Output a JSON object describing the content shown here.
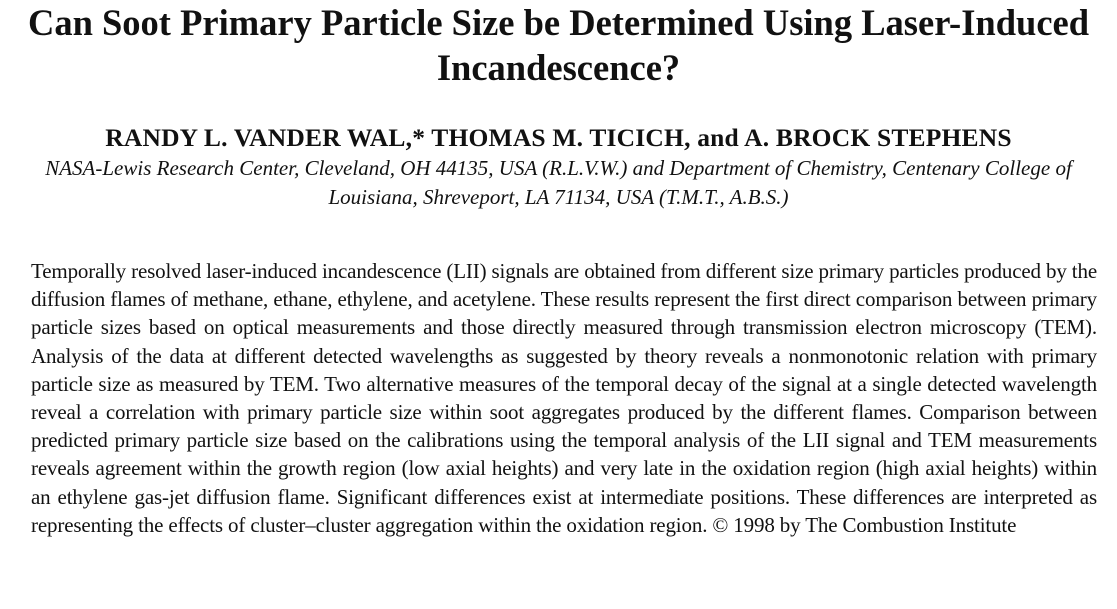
{
  "paper": {
    "title": "Can Soot Primary Particle Size be Determined Using Laser-Induced Incandescence?",
    "authors": "RANDY L. VANDER WAL,* THOMAS M. TICICH, and A. BROCK STEPHENS",
    "affiliation": "NASA-Lewis Research Center, Cleveland, OH 44135, USA (R.L.V.W.) and Department of Chemistry, Centenary College of Louisiana, Shreveport, LA 71134, USA (T.M.T., A.B.S.)",
    "abstract": "Temporally resolved laser-induced incandescence (LII) signals are obtained from different size primary particles produced by the diffusion flames of methane, ethane, ethylene, and acetylene. These results represent the first direct comparison between primary particle sizes based on optical measurements and those directly measured through transmission electron microscopy (TEM). Analysis of the data at different detected wavelengths as suggested by theory reveals a nonmonotonic relation with primary particle size as measured by TEM. Two alternative measures of the temporal decay of the signal at a single detected wavelength reveal a correlation with primary particle size within soot aggregates produced by the different flames. Comparison between predicted primary particle size based on the calibrations using the temporal analysis of the LII signal and TEM measurements reveals agreement within the growth region (low axial heights) and very late in the oxidation region (high axial heights) within an ethylene gas-jet diffusion flame. Significant differences exist at intermediate positions. These differences are interpreted as representing the effects of cluster–cluster aggregation within the oxidation region.   © 1998 by The Combustion Institute"
  }
}
